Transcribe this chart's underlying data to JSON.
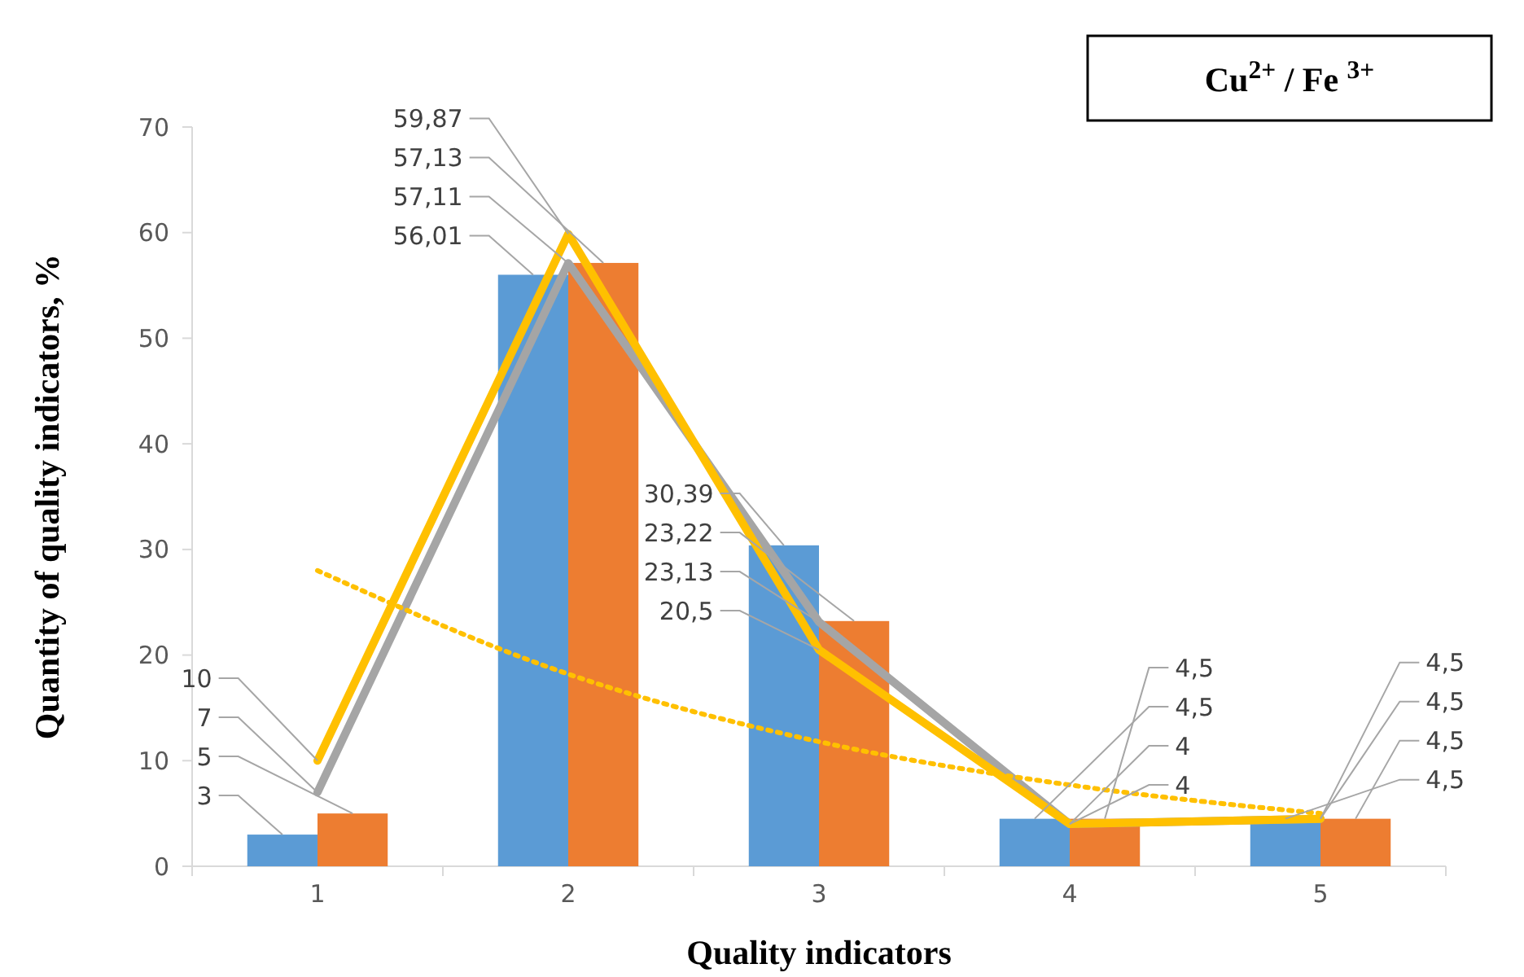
{
  "chart_data": {
    "type": "bar",
    "xlabel": "Quality indicators",
    "ylabel": "Quantity of quality indicators, %",
    "categories": [
      "1",
      "2",
      "3",
      "4",
      "5"
    ],
    "ylim": [
      0,
      70
    ],
    "yticks": [
      0,
      10,
      20,
      30,
      40,
      50,
      60,
      70
    ],
    "grid": false,
    "series": [
      {
        "color": "#5b9bd5",
        "values": [
          3,
          56.01,
          30.39,
          4.5,
          4.5
        ],
        "value_labels": [
          "3",
          "56,01",
          "30,39",
          "4,5",
          "4,5"
        ]
      },
      {
        "color": "#ed7d31",
        "values": [
          5,
          57.13,
          23.22,
          4.5,
          4.5
        ],
        "value_labels": [
          "5",
          "57,13",
          "23,22",
          "4,5",
          "4,5"
        ]
      },
      {
        "type": "line",
        "color": "#a5a5a5",
        "values": [
          7,
          57.11,
          23.13,
          4,
          4.5
        ],
        "value_labels": [
          "7",
          "57,11",
          "23,13",
          "4",
          "4,5"
        ]
      },
      {
        "type": "line",
        "color": "#ffc000",
        "values": [
          10,
          59.87,
          20.5,
          4,
          4.5
        ],
        "value_labels": [
          "10",
          "59,87",
          "20,5",
          "4",
          "4,5"
        ]
      },
      {
        "type": "line",
        "color": "#ffc000",
        "line_style": "dotted",
        "values": [
          28,
          18.2,
          11.8,
          7.7,
          5
        ]
      }
    ],
    "annotations": [
      "Cu$^{2+}$ / Fe $^{3+}$"
    ]
  }
}
